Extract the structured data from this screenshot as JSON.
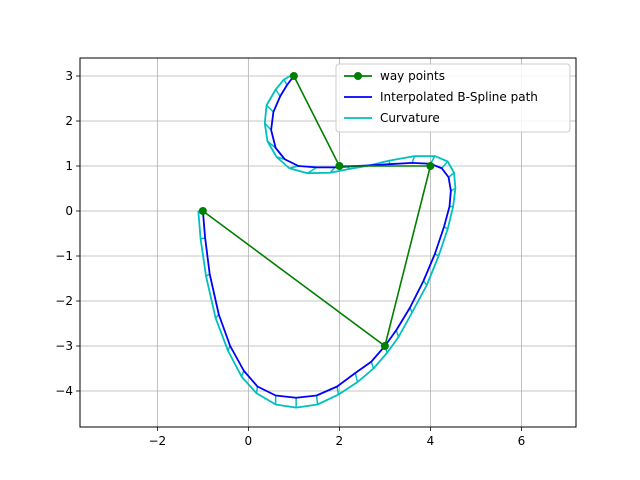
{
  "chart_data": {
    "type": "line",
    "title": "",
    "xlabel": "",
    "ylabel": "",
    "xlim": [
      -3.7,
      7.2
    ],
    "ylim": [
      -4.8,
      3.4
    ],
    "x_ticks": [
      -2,
      0,
      2,
      4,
      6
    ],
    "y_ticks": [
      -4,
      -3,
      -2,
      -1,
      0,
      1,
      2,
      3
    ],
    "x_tick_labels": [
      "−2",
      "0",
      "2",
      "4",
      "6"
    ],
    "y_tick_labels": [
      "−4",
      "−3",
      "−2",
      "−1",
      "0",
      "1",
      "2",
      "3"
    ],
    "grid": true,
    "legend_position": "top-right",
    "series": [
      {
        "name": "way points",
        "color": "#008000",
        "marker": "circle",
        "x": [
          -1,
          3,
          4,
          2,
          1
        ],
        "y": [
          0,
          -3,
          1,
          1,
          3
        ]
      },
      {
        "name": "Interpolated B-Spline path",
        "color": "#0000ff",
        "x": [
          -1.0,
          -0.95,
          -0.85,
          -0.65,
          -0.4,
          -0.1,
          0.2,
          0.6,
          1.05,
          1.5,
          1.95,
          2.35,
          2.7,
          3.0,
          3.25,
          3.55,
          3.85,
          4.1,
          4.3,
          4.42,
          4.45,
          4.4,
          4.25,
          4.0,
          3.6,
          3.1,
          2.6,
          2.2,
          1.9,
          1.5,
          1.1,
          0.8,
          0.6,
          0.5,
          0.55,
          0.7,
          0.85,
          1.0
        ],
        "y": [
          0.0,
          -0.6,
          -1.4,
          -2.3,
          -3.0,
          -3.55,
          -3.9,
          -4.1,
          -4.15,
          -4.1,
          -3.9,
          -3.6,
          -3.35,
          -3.0,
          -2.65,
          -2.15,
          -1.55,
          -0.95,
          -0.35,
          0.1,
          0.45,
          0.75,
          0.95,
          1.05,
          1.07,
          1.04,
          1.01,
          0.99,
          0.97,
          0.97,
          1.0,
          1.15,
          1.4,
          1.8,
          2.2,
          2.55,
          2.8,
          3.0
        ]
      },
      {
        "name": "Curvature",
        "color": "#00bfbf",
        "x": [
          -1.1,
          -1.05,
          -0.93,
          -0.72,
          -0.45,
          -0.15,
          0.18,
          0.6,
          1.05,
          1.52,
          1.98,
          2.4,
          2.75,
          3.05,
          3.3,
          3.6,
          3.92,
          4.18,
          4.38,
          4.5,
          4.55,
          4.52,
          4.38,
          4.1,
          3.65,
          3.1,
          2.6,
          2.2,
          1.8,
          1.3,
          0.9,
          0.62,
          0.42,
          0.36,
          0.4,
          0.6,
          0.78,
          0.95
        ],
        "y": [
          0.0,
          -0.62,
          -1.45,
          -2.38,
          -3.1,
          -3.68,
          -4.05,
          -4.3,
          -4.37,
          -4.3,
          -4.08,
          -3.8,
          -3.5,
          -3.15,
          -2.8,
          -2.25,
          -1.65,
          -1.0,
          -0.4,
          0.1,
          0.5,
          0.85,
          1.1,
          1.22,
          1.22,
          1.12,
          1.0,
          0.93,
          0.85,
          0.84,
          0.95,
          1.2,
          1.55,
          1.95,
          2.35,
          2.7,
          2.92,
          3.02
        ]
      }
    ]
  }
}
